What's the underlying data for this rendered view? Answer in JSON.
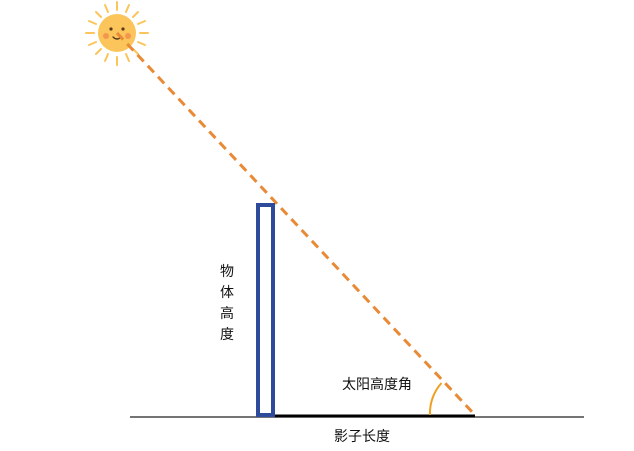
{
  "labels": {
    "object_height_chars": [
      "物",
      "体",
      "高",
      "度"
    ],
    "sun_altitude_angle": "太阳高度角",
    "shadow_length": "影子长度"
  },
  "icons": {
    "sun": "sun-icon"
  },
  "colors": {
    "sun_fill": "#FBC55B",
    "sun_rays": "#FBC55B",
    "sun_face": "#E8703A",
    "sun_light_ray": "#E98A36",
    "object": "#2E4A9A",
    "angle_arc": "#F0A020",
    "ground": "#222222",
    "shadow": "#000000"
  }
}
